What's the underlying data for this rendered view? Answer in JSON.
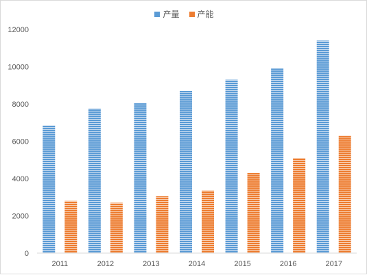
{
  "chart_data": {
    "type": "bar",
    "title": "",
    "xlabel": "",
    "ylabel": "",
    "categories": [
      "2011",
      "2012",
      "2013",
      "2014",
      "2015",
      "2016",
      "2017"
    ],
    "series": [
      {
        "name": "产量",
        "color": "#5b9bd5",
        "values": [
          6850,
          7750,
          8050,
          8700,
          9300,
          9900,
          11400
        ]
      },
      {
        "name": "产能",
        "color": "#ed7d31",
        "values": [
          2800,
          2700,
          3050,
          3350,
          4300,
          5100,
          6300
        ]
      }
    ],
    "ylim": [
      0,
      12000
    ],
    "yticks": [
      "0",
      "2000",
      "4000",
      "6000",
      "8000",
      "10000",
      "12000"
    ],
    "grid": false,
    "legend_position": "top"
  }
}
